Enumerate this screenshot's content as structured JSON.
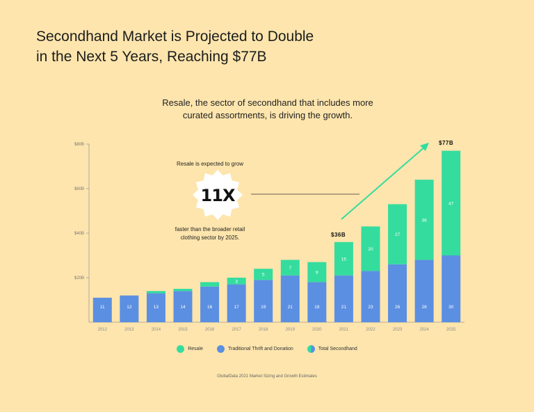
{
  "title_lines": [
    "Secondhand Market is Projected to Double",
    "in the Next 5 Years, Reaching $77B"
  ],
  "subtitle_lines": [
    "Resale, the sector of secondhand that includes more",
    "curated assortments, is driving the growth."
  ],
  "callout": {
    "top": "Resale is expected to grow",
    "big": "11X",
    "bottom_lines": [
      "faster than the broader retail",
      "clothing sector by 2025."
    ]
  },
  "highlights": {
    "y2021": "$36B",
    "y2025": "$77B"
  },
  "legend": {
    "resale": "Resale",
    "thrift": "Traditional Thrift and Donation",
    "total": "Total Secondhand"
  },
  "footer": "GlobalData 2021 Market Sizing and Growth Estimates",
  "colors": {
    "resale": "#34dc9e",
    "thrift": "#5b8fe2",
    "background": "#fde5ad"
  },
  "chart_data": {
    "type": "bar",
    "stacked": true,
    "categories": [
      "2012",
      "2013",
      "2014",
      "2015",
      "2016",
      "2017",
      "2018",
      "2019",
      "2020",
      "2021",
      "2022",
      "2023",
      "2024",
      "2025"
    ],
    "series": [
      {
        "name": "Traditional Thrift and Donation",
        "values": [
          11,
          12,
          13,
          14,
          16,
          17,
          19,
          21,
          18,
          21,
          23,
          26,
          28,
          30
        ],
        "labels": [
          "11",
          "12",
          "13",
          "14",
          "16",
          "17",
          "19",
          "21",
          "18",
          "21",
          "23",
          "26",
          "28",
          "30"
        ]
      },
      {
        "name": "Resale",
        "values": [
          0,
          0,
          1,
          1,
          2,
          3,
          5,
          7,
          9,
          15,
          20,
          27,
          36,
          47
        ],
        "labels": [
          "",
          "",
          "",
          "",
          "",
          "3",
          "5",
          "7",
          "9",
          "15",
          "20",
          "27",
          "36",
          "47"
        ]
      }
    ],
    "y_ticks": [
      "$20B",
      "$40B",
      "$60B",
      "$80B"
    ],
    "y_tick_values": [
      20,
      40,
      60,
      80
    ],
    "ylim": [
      0,
      80
    ]
  }
}
